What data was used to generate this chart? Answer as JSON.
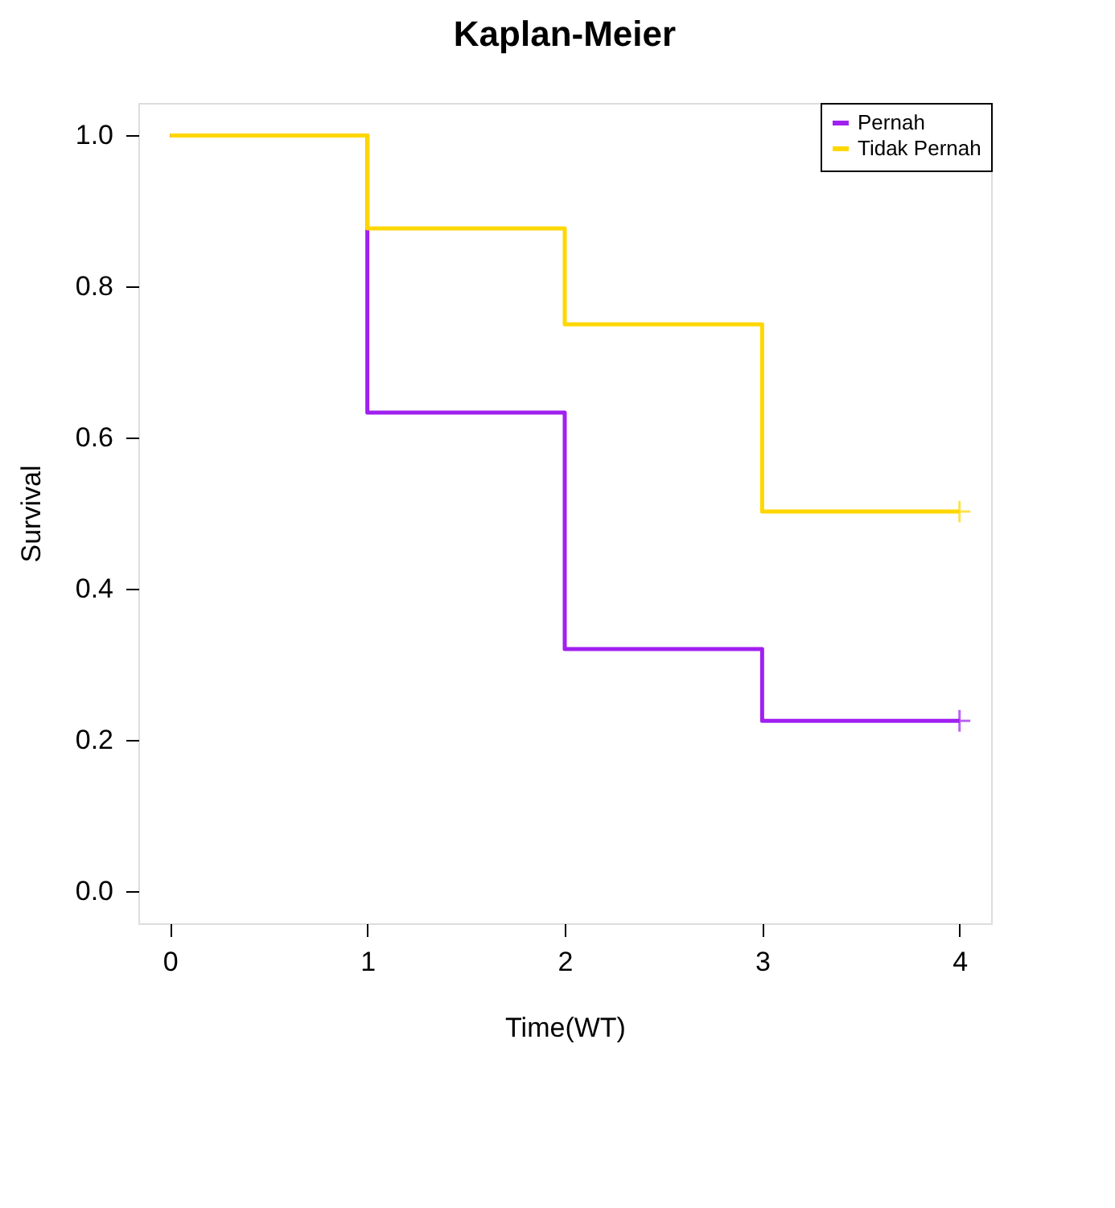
{
  "chart_data": {
    "type": "step",
    "title": "Kaplan-Meier",
    "xlabel": "Time(WT)",
    "ylabel": "Survival",
    "xlim": [
      -0.16,
      4.16
    ],
    "ylim": [
      -0.043,
      1.043
    ],
    "xticks": [
      0,
      1,
      2,
      3,
      4
    ],
    "yticks": [
      {
        "value": 0,
        "label": "0.0"
      },
      0.2,
      0.4,
      0.6,
      0.8,
      {
        "value": 1,
        "label": "1.0"
      }
    ],
    "grid": false,
    "legend": "top right",
    "line_style": "solid",
    "series": [
      {
        "name": "Pernah",
        "color": "#a020f0",
        "x": [
          0,
          1,
          2,
          3,
          4
        ],
        "values": [
          1.0,
          0.633,
          0.32,
          0.225,
          0.225
        ]
      },
      {
        "name": "Tidak Pernah",
        "color": "#ffd700",
        "x": [
          0,
          1,
          2,
          3,
          4
        ],
        "values": [
          1.0,
          0.877,
          0.75,
          0.502,
          0.502
        ]
      },
      {
        "type": "scatter",
        "marker": "cross",
        "color": "#a020f0",
        "x": [
          4
        ],
        "values": [
          0.225
        ]
      },
      {
        "type": "scatter",
        "marker": "cross",
        "color": "#ffd700",
        "x": [
          4
        ],
        "values": [
          0.502
        ]
      }
    ]
  }
}
